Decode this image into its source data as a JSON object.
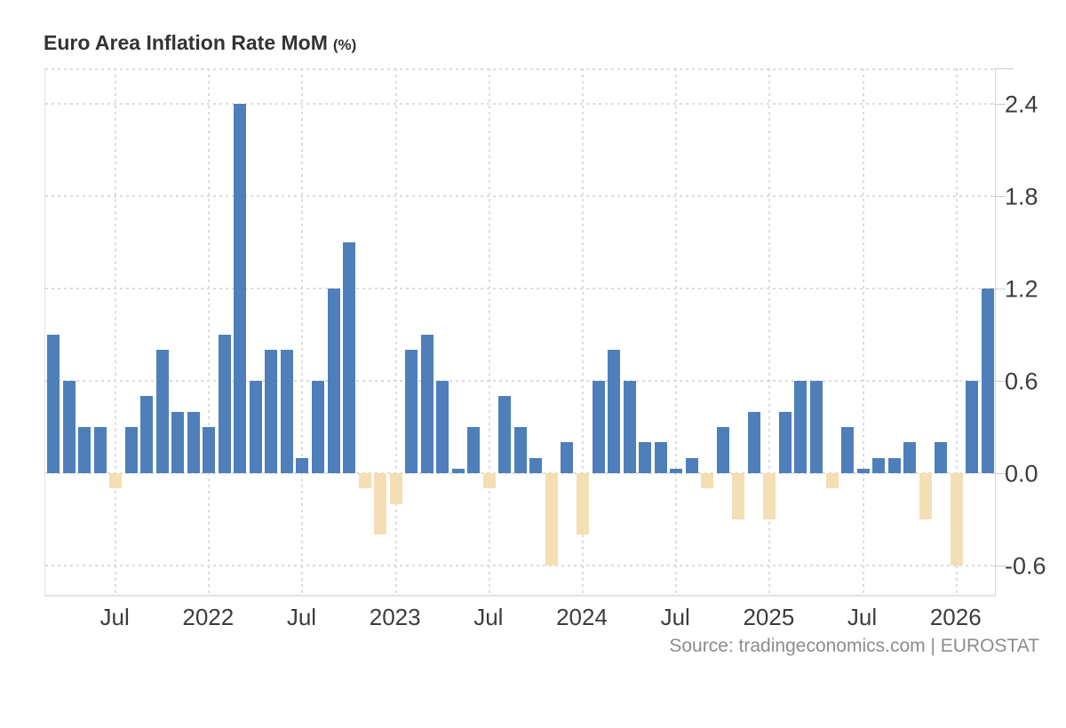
{
  "header": {
    "title": "Euro Area Inflation Rate MoM",
    "title_unit": "(%)"
  },
  "footer": {
    "source": "Source: tradingeconomics.com | EUROSTAT"
  },
  "chart_data": {
    "type": "bar",
    "title": "Euro Area Inflation Rate MoM (%)",
    "xlabel": "",
    "ylabel": "",
    "legend": "none",
    "grid": "dotted",
    "ylim": [
      -0.79,
      2.63
    ],
    "y_tick_values": [
      2.4,
      1.8,
      1.2,
      0.6,
      0.0,
      -0.6
    ],
    "y_tick_labels": [
      "2.4",
      "1.8",
      "1.2",
      "0.6",
      "0.0",
      "-0.6"
    ],
    "x_tick_labels": [
      "Jul",
      "2022",
      "Jul",
      "2023",
      "Jul",
      "2024",
      "Jul",
      "2025",
      "Jul",
      "2026"
    ],
    "x_tick_month_index": [
      4,
      10,
      16,
      22,
      28,
      34,
      40,
      46,
      52,
      58
    ],
    "x": [
      "Mar 2021",
      "Apr 2021",
      "May 2021",
      "Jun 2021",
      "Jul 2021",
      "Aug 2021",
      "Sep 2021",
      "Oct 2021",
      "Nov 2021",
      "Dec 2021",
      "Jan 2022",
      "Feb 2022",
      "Mar 2022",
      "Apr 2022",
      "May 2022",
      "Jun 2022",
      "Jul 2022",
      "Aug 2022",
      "Sep 2022",
      "Oct 2022",
      "Nov 2022",
      "Dec 2022",
      "Jan 2023",
      "Feb 2023",
      "Mar 2023",
      "Apr 2023",
      "May 2023",
      "Jun 2023",
      "Jul 2023",
      "Aug 2023",
      "Sep 2023",
      "Oct 2023",
      "Nov 2023",
      "Dec 2023",
      "Jan 2024",
      "Feb 2024",
      "Mar 2024",
      "Apr 2024",
      "May 2024",
      "Jun 2024",
      "Jul 2024",
      "Aug 2024",
      "Sep 2024",
      "Oct 2024",
      "Nov 2024",
      "Dec 2024",
      "Jan 2025",
      "Feb 2025",
      "Mar 2025",
      "Apr 2025",
      "May 2025",
      "Jun 2025",
      "Jul 2025",
      "Aug 2025",
      "Sep 2025",
      "Oct 2025",
      "Nov 2025",
      "Dec 2025",
      "Jan 2026",
      "Feb 2026",
      "Mar 2026"
    ],
    "values": [
      0.9,
      0.6,
      0.3,
      0.3,
      -0.1,
      0.3,
      0.5,
      0.8,
      0.4,
      0.4,
      0.3,
      0.9,
      2.4,
      0.6,
      0.8,
      0.8,
      0.1,
      0.6,
      1.2,
      1.5,
      -0.1,
      -0.4,
      -0.2,
      0.8,
      0.9,
      0.6,
      0.0,
      0.3,
      -0.1,
      0.5,
      0.3,
      0.1,
      -0.6,
      0.2,
      -0.4,
      0.6,
      0.8,
      0.6,
      0.2,
      0.2,
      0.0,
      0.1,
      -0.1,
      0.3,
      -0.3,
      0.4,
      -0.3,
      0.4,
      0.6,
      0.6,
      -0.1,
      0.3,
      0.0,
      0.1,
      0.1,
      0.2,
      -0.3,
      0.2,
      -0.6,
      0.6,
      1.2
    ],
    "colors": {
      "positive_bar": "#4e7fbb",
      "negative_bar": "#f5deb3",
      "gridline": "#dcdcdc",
      "axis_text": "#3c3c3c",
      "title_text": "#333333",
      "source_text": "#8c8c8c",
      "plot_border": "#e0e0e0"
    }
  }
}
